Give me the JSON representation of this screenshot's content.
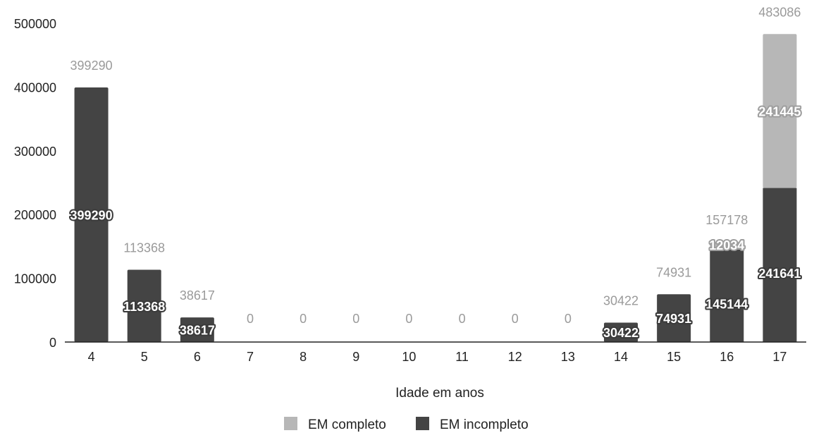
{
  "chart_data": {
    "type": "bar",
    "stacked": true,
    "categories": [
      "4",
      "5",
      "6",
      "7",
      "8",
      "9",
      "10",
      "11",
      "12",
      "13",
      "14",
      "15",
      "16",
      "17"
    ],
    "series": [
      {
        "name": "EM incompleto",
        "color": "#444444",
        "values": [
          399290,
          113368,
          38617,
          0,
          0,
          0,
          0,
          0,
          0,
          0,
          30422,
          74931,
          145144,
          241641
        ]
      },
      {
        "name": "EM completo",
        "color": "#b7b7b7",
        "values": [
          0,
          0,
          0,
          0,
          0,
          0,
          0,
          0,
          0,
          0,
          0,
          0,
          12034,
          241445
        ]
      }
    ],
    "totals": [
      399290,
      113368,
      38617,
      0,
      0,
      0,
      0,
      0,
      0,
      0,
      30422,
      74931,
      157178,
      483086
    ],
    "xlabel": "Idade em anos",
    "ylabel": "",
    "ylim": [
      0,
      500000
    ],
    "yticks": [
      0,
      100000,
      200000,
      300000,
      400000,
      500000
    ],
    "grid": false,
    "legend": "bottom"
  }
}
